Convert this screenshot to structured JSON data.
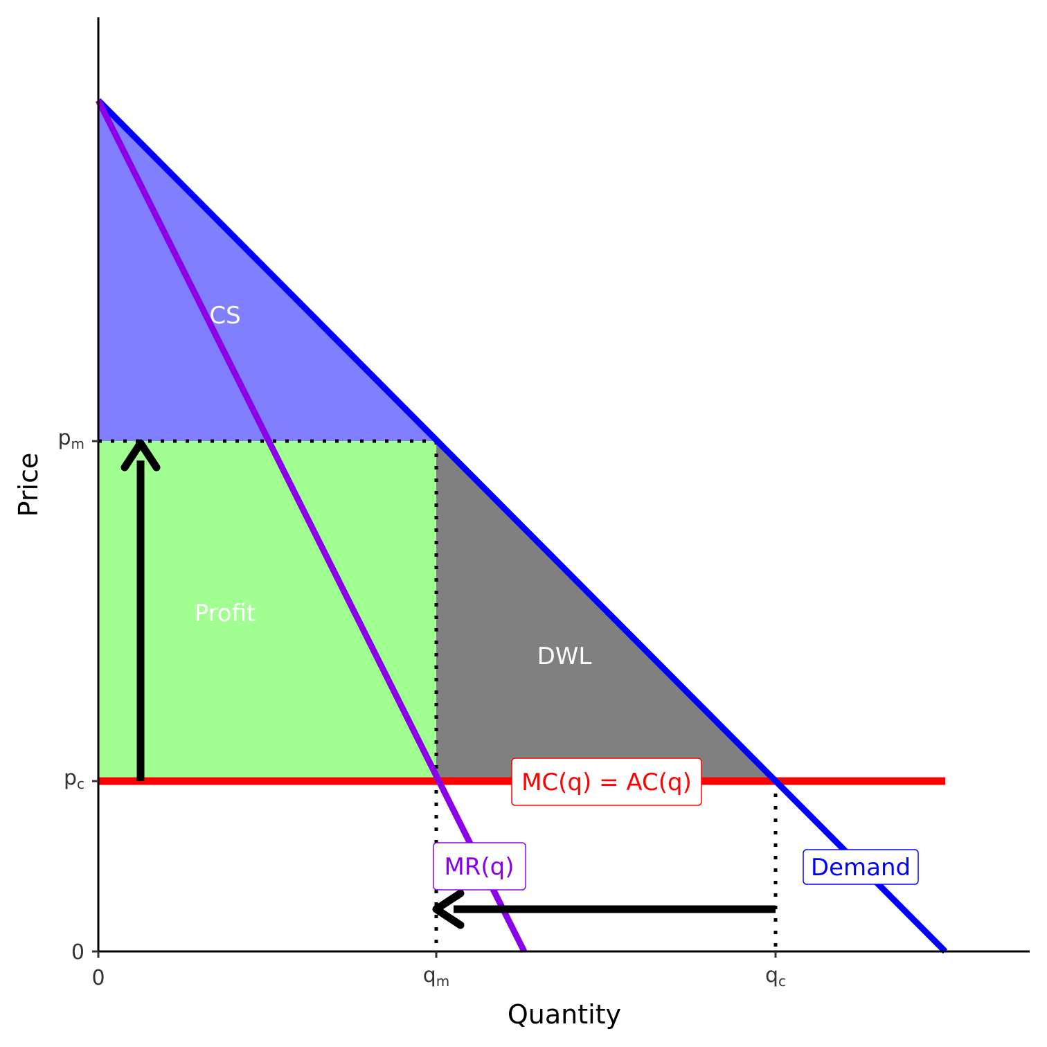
{
  "axes": {
    "x_label": "Quantity",
    "y_label": "Price"
  },
  "x_ticks": [
    {
      "base": "0"
    },
    {
      "base": "q",
      "sub": "m"
    },
    {
      "base": "q",
      "sub": "c"
    }
  ],
  "y_ticks": [
    {
      "base": "0"
    },
    {
      "base": "p",
      "sub": "c"
    },
    {
      "base": "p",
      "sub": "m"
    }
  ],
  "regions": {
    "cs": "CS",
    "profit": "Profit",
    "dwl": "DWL"
  },
  "curves": {
    "mc": "MC(q) = AC(q)",
    "mr": "MR(q)",
    "demand": "Demand"
  }
}
